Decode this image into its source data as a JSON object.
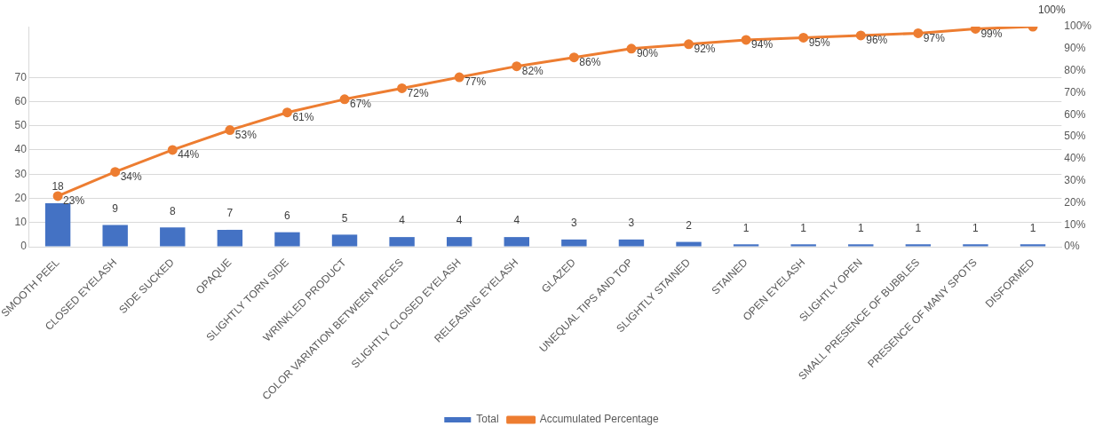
{
  "chart_data": {
    "type": "bar",
    "categories": [
      "SMOOTH PEEL",
      "CLOSED EYELASH",
      "SIDE SUCKED",
      "OPAQUE",
      "SLIGHTLY TORN SIDE",
      "WRINKLED PRODUCT",
      "COLOR VARIATION BETWEEN PIECES",
      "SLIGHTLY CLOSED EYELASH",
      "RELEASING EYELASH",
      "GLAZED",
      "UNEQUAL TIPS AND TOP",
      "SLIGHTLY STAINED",
      "STAINED",
      "OPEN EYELASH",
      "SLIGHTLY OPEN",
      "SMALL PRESENCE OF BUBBLES",
      "PRESENCE OF MANY SPOTS",
      "DISFORMED"
    ],
    "series": [
      {
        "name": "Total",
        "color": "#4472c4",
        "values": [
          18,
          9,
          8,
          7,
          6,
          5,
          4,
          4,
          4,
          3,
          3,
          2,
          1,
          1,
          1,
          1,
          1,
          1
        ],
        "value_labels": [
          "18",
          "9",
          "8",
          "7",
          "6",
          "5",
          "4",
          "4",
          "4",
          "3",
          "3",
          "2",
          "1",
          "1",
          "1",
          "1",
          "1",
          "1"
        ]
      },
      {
        "name": "Accumulated Percentage",
        "type": "line",
        "axis": "y2",
        "color": "#ed7d31",
        "values": [
          23,
          34,
          44,
          53,
          61,
          67,
          72,
          77,
          82,
          86,
          90,
          92,
          94,
          95,
          96,
          97,
          99,
          100
        ],
        "value_labels": [
          "23%",
          "34%",
          "44%",
          "53%",
          "61%",
          "67%",
          "72%",
          "77%",
          "82%",
          "86%",
          "90%",
          "92%",
          "94%",
          "95%",
          "96%",
          "97%",
          "99%",
          "100%"
        ]
      }
    ],
    "ylim": [
      0,
      91
    ],
    "yticks": [
      0,
      10,
      20,
      30,
      40,
      50,
      60,
      70
    ],
    "y2lim": [
      0,
      100
    ],
    "y2ticks": [
      {
        "value": 0,
        "label": "0%"
      },
      {
        "value": 10,
        "label": "10%"
      },
      {
        "value": 20,
        "label": "20%"
      },
      {
        "value": 30,
        "label": "30%"
      },
      {
        "value": 40,
        "label": "40%"
      },
      {
        "value": 50,
        "label": "50%"
      },
      {
        "value": 60,
        "label": "60%"
      },
      {
        "value": 70,
        "label": "70%"
      },
      {
        "value": 80,
        "label": "80%"
      },
      {
        "value": 90,
        "label": "90%"
      },
      {
        "value": 100,
        "label": "100%"
      }
    ],
    "grid": "y",
    "legend": "bottom",
    "marker": "circle",
    "line_style": "solid"
  }
}
